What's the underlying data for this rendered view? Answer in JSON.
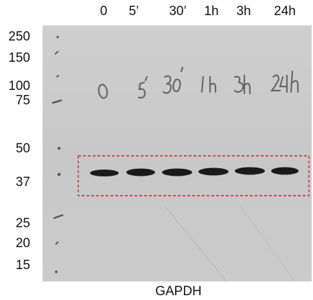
{
  "lanes": [
    "0",
    "5’",
    "30’",
    "1h",
    "3h",
    "24h"
  ],
  "markers": [
    "250",
    "150",
    "100",
    "75",
    "50",
    "37",
    "25",
    "20",
    "15"
  ],
  "caption": "GAPDH",
  "handwritten_labels": [
    "0",
    "5'",
    "30'",
    "1h",
    "3h",
    "24h"
  ],
  "colors": {
    "membrane": "#c9c9c9",
    "band": "#1a1a1a",
    "box": "#cc1f1f"
  }
}
